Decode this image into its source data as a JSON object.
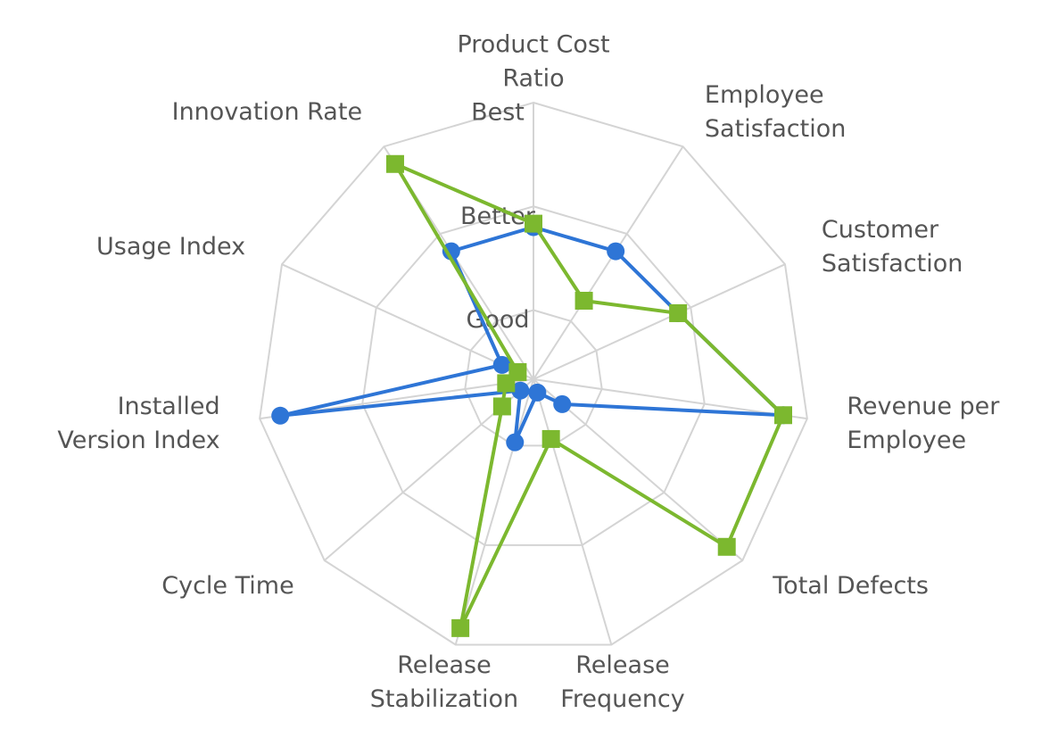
{
  "chart_data": {
    "type": "radar",
    "categories": [
      [
        "Product Cost",
        "Ratio"
      ],
      [
        "Employee",
        "Satisfaction"
      ],
      [
        "Customer",
        "Satisfaction"
      ],
      [
        "Revenue per",
        "Employee"
      ],
      [
        "Total Defects"
      ],
      [
        "Release",
        "Frequency"
      ],
      [
        "Release",
        "Stabilization"
      ],
      [
        "Cycle Time"
      ],
      [
        "Installed",
        "Version Index"
      ],
      [
        "Usage Index"
      ],
      [
        "Innovation Rate"
      ]
    ],
    "ylim": [
      0,
      4
    ],
    "yticks": [
      {
        "value": 1,
        "label": "Good"
      },
      {
        "value": 2.5,
        "label": "Better"
      },
      {
        "value": 4,
        "label": "Best"
      }
    ],
    "grid": true,
    "series": [
      {
        "color": "#2e75d6",
        "marker": "circle",
        "values": [
          2.2,
          2.2,
          2.3,
          3.65,
          0.55,
          0.2,
          0.95,
          0.25,
          3.7,
          0.5,
          2.2
        ]
      },
      {
        "color": "#7cb82f",
        "marker": "square",
        "values": [
          2.25,
          1.35,
          2.3,
          3.65,
          3.7,
          0.9,
          3.75,
          0.6,
          0.4,
          0.25,
          3.7
        ]
      }
    ]
  }
}
